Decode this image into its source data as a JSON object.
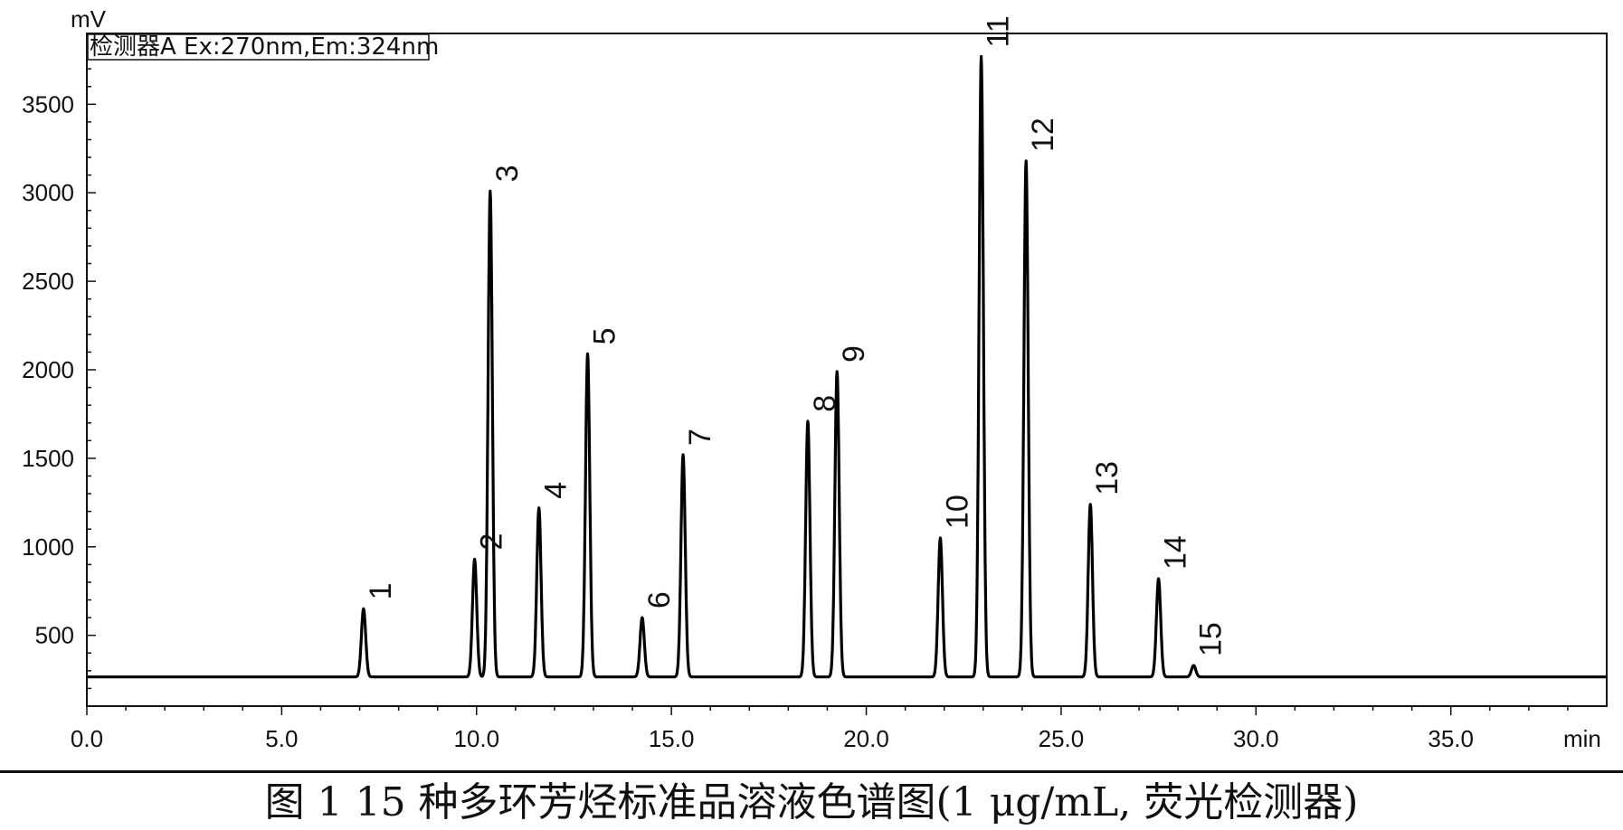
{
  "chart_data": {
    "type": "line",
    "y_unit": "mV",
    "x_unit": "min",
    "detector_label": "检测器A Ex:270nm,Em:324nm",
    "xlim": [
      0,
      39
    ],
    "ylim": [
      100,
      3900
    ],
    "baseline": 265,
    "x_ticks": [
      "0.0",
      "5.0",
      "10.0",
      "15.0",
      "20.0",
      "25.0",
      "30.0",
      "35.0"
    ],
    "x_tick_values": [
      0,
      5,
      10,
      15,
      20,
      25,
      30,
      35
    ],
    "y_ticks": [
      "500",
      "1000",
      "1500",
      "2000",
      "2500",
      "3000",
      "3500"
    ],
    "y_tick_values": [
      500,
      1000,
      1500,
      2000,
      2500,
      3000,
      3500
    ],
    "peaks": [
      {
        "label": "1",
        "x": 7.1,
        "y": 650
      },
      {
        "label": "2",
        "x": 9.95,
        "y": 930
      },
      {
        "label": "3",
        "x": 10.35,
        "y": 3010
      },
      {
        "label": "4",
        "x": 11.6,
        "y": 1220
      },
      {
        "label": "5",
        "x": 12.85,
        "y": 2090
      },
      {
        "label": "6",
        "x": 14.25,
        "y": 600
      },
      {
        "label": "7",
        "x": 15.3,
        "y": 1520
      },
      {
        "label": "8",
        "x": 18.5,
        "y": 1710
      },
      {
        "label": "9",
        "x": 19.25,
        "y": 1990
      },
      {
        "label": "10",
        "x": 21.9,
        "y": 1050
      },
      {
        "label": "11",
        "x": 22.95,
        "y": 3770
      },
      {
        "label": "12",
        "x": 24.1,
        "y": 3180
      },
      {
        "label": "13",
        "x": 25.75,
        "y": 1240
      },
      {
        "label": "14",
        "x": 27.5,
        "y": 820
      },
      {
        "label": "15",
        "x": 28.4,
        "y": 330
      }
    ]
  },
  "caption": "图 1 15 种多环芳烃标准品溶液色谱图(1 μg/mL, 荧光检测器)"
}
